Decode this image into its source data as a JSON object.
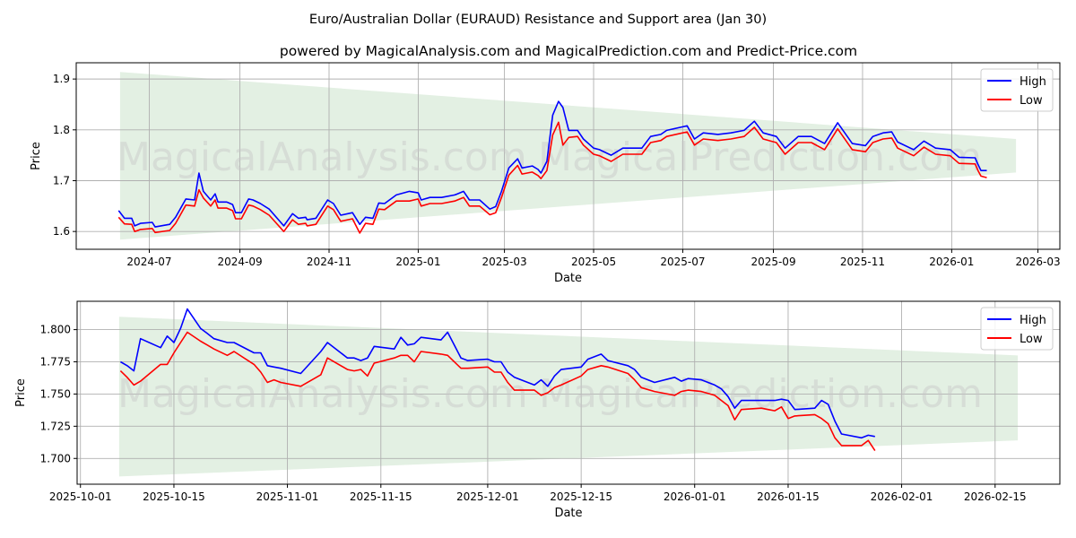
{
  "title": "Euro/Australian Dollar (EURAUD) Resistance and Support area (Jan 30)",
  "subtitle": "powered by MagicalAnalysis.com and MagicalPrediction.com and Predict-Price.com",
  "watermarks": [
    "MagicalAnalysis.com",
    "MagicalPrediction.com"
  ],
  "colors": {
    "high": "#0000ff",
    "low": "#ff0000",
    "band": "#e3f0e3"
  },
  "chart_data": [
    {
      "type": "line",
      "name": "full-range",
      "xlabel": "Date",
      "ylabel": "Price",
      "x_origin": "2024-07-01",
      "x_unit": "days since origin",
      "xlim": [
        -50,
        623
      ],
      "ylim": [
        1.565,
        1.932
      ],
      "grid": true,
      "legend": "top-right",
      "legend_labels": [
        "High",
        "Low"
      ],
      "xticks": [
        "2024-07",
        "2024-09",
        "2024-11",
        "2025-01",
        "2025-03",
        "2025-05",
        "2025-07",
        "2025-09",
        "2025-11",
        "2026-01",
        "2026-03"
      ],
      "yticks": [
        "1.6",
        "1.7",
        "1.8",
        "1.9"
      ],
      "band": {
        "x": [
          -20,
          593
        ],
        "upper": [
          1.914,
          1.782
        ],
        "lower": [
          1.584,
          1.716
        ]
      },
      "x": [
        -21,
        -17,
        -12,
        -10,
        -6,
        2,
        4,
        14,
        18,
        25,
        31,
        34,
        37,
        42,
        45,
        47,
        53,
        57,
        59,
        63,
        68,
        71,
        76,
        82,
        92,
        98,
        102,
        107,
        108,
        114,
        122,
        126,
        131,
        139,
        144,
        148,
        153,
        157,
        161,
        169,
        178,
        184,
        186,
        192,
        200,
        209,
        215,
        219,
        226,
        233,
        237,
        241,
        246,
        252,
        255,
        262,
        266,
        268,
        272,
        276,
        280,
        283,
        287,
        293,
        297,
        304,
        308,
        316,
        324,
        330,
        337,
        343,
        350,
        354,
        368,
        373,
        379,
        389,
        398,
        407,
        414,
        420,
        429,
        435,
        444,
        453,
        462,
        471,
        481,
        490,
        495,
        502,
        508,
        512,
        523,
        530,
        538,
        548,
        554,
        565,
        567,
        569,
        573
      ],
      "series": [
        {
          "name": "High",
          "values": [
            1.641,
            1.626,
            1.626,
            1.611,
            1.616,
            1.618,
            1.609,
            1.614,
            1.628,
            1.664,
            1.662,
            1.715,
            1.679,
            1.662,
            1.674,
            1.658,
            1.658,
            1.653,
            1.637,
            1.637,
            1.664,
            1.662,
            1.655,
            1.644,
            1.611,
            1.635,
            1.626,
            1.628,
            1.623,
            1.626,
            1.662,
            1.655,
            1.632,
            1.637,
            1.614,
            1.628,
            1.626,
            1.656,
            1.655,
            1.672,
            1.679,
            1.676,
            1.662,
            1.667,
            1.667,
            1.672,
            1.679,
            1.662,
            1.662,
            1.644,
            1.649,
            1.679,
            1.725,
            1.743,
            1.725,
            1.729,
            1.722,
            1.715,
            1.738,
            1.829,
            1.856,
            1.844,
            1.799,
            1.799,
            1.782,
            1.764,
            1.761,
            1.75,
            1.764,
            1.764,
            1.764,
            1.787,
            1.791,
            1.799,
            1.808,
            1.782,
            1.794,
            1.791,
            1.794,
            1.799,
            1.817,
            1.794,
            1.787,
            1.764,
            1.787,
            1.787,
            1.773,
            1.814,
            1.773,
            1.769,
            1.787,
            1.794,
            1.796,
            1.776,
            1.761,
            1.778,
            1.764,
            1.761,
            1.746,
            1.745,
            1.732,
            1.72,
            1.72
          ]
        },
        {
          "name": "Low",
          "values": [
            1.628,
            1.615,
            1.614,
            1.6,
            1.604,
            1.606,
            1.598,
            1.602,
            1.616,
            1.652,
            1.65,
            1.682,
            1.666,
            1.65,
            1.662,
            1.646,
            1.646,
            1.641,
            1.625,
            1.625,
            1.652,
            1.65,
            1.643,
            1.632,
            1.6,
            1.623,
            1.614,
            1.616,
            1.611,
            1.614,
            1.65,
            1.643,
            1.62,
            1.625,
            1.597,
            1.616,
            1.614,
            1.644,
            1.643,
            1.66,
            1.66,
            1.664,
            1.65,
            1.655,
            1.655,
            1.66,
            1.667,
            1.65,
            1.65,
            1.633,
            1.637,
            1.667,
            1.711,
            1.73,
            1.713,
            1.717,
            1.71,
            1.704,
            1.72,
            1.79,
            1.815,
            1.77,
            1.785,
            1.787,
            1.77,
            1.752,
            1.749,
            1.738,
            1.752,
            1.752,
            1.752,
            1.775,
            1.779,
            1.787,
            1.796,
            1.77,
            1.782,
            1.779,
            1.782,
            1.787,
            1.805,
            1.782,
            1.775,
            1.752,
            1.775,
            1.775,
            1.761,
            1.802,
            1.761,
            1.757,
            1.775,
            1.782,
            1.784,
            1.764,
            1.749,
            1.766,
            1.752,
            1.749,
            1.734,
            1.733,
            1.72,
            1.709,
            1.706
          ]
        }
      ]
    },
    {
      "type": "line",
      "name": "recent-range",
      "xlabel": "Date",
      "ylabel": "Price",
      "x_origin": "2025-10-01",
      "x_unit": "days since origin",
      "xlim": [
        -0.5,
        146.7
      ],
      "ylim": [
        1.68,
        1.822
      ],
      "grid": true,
      "legend": "top-right",
      "legend_labels": [
        "High",
        "Low"
      ],
      "xticks": [
        "2025-10-01",
        "2025-10-15",
        "2025-11-01",
        "2025-11-15",
        "2025-12-01",
        "2025-12-15",
        "2026-01-01",
        "2026-01-15",
        "2026-02-01",
        "2026-02-15"
      ],
      "yticks": [
        "1.700",
        "1.725",
        "1.750",
        "1.775",
        "1.800"
      ],
      "band": {
        "x": [
          5.8,
          140.4
        ],
        "upper": [
          1.81,
          1.78
        ],
        "lower": [
          1.686,
          1.714
        ]
      },
      "x": [
        6,
        7,
        8,
        9,
        12,
        13,
        14,
        15,
        16,
        18,
        19,
        20,
        22,
        23,
        26,
        27,
        28,
        29,
        30,
        33,
        36,
        37,
        40,
        41,
        42,
        43,
        44,
        47,
        48,
        49,
        50,
        51,
        54,
        55,
        57,
        58,
        61,
        62,
        63,
        64,
        65,
        68,
        69,
        70,
        71,
        72,
        75,
        76,
        78,
        79,
        82,
        83,
        84,
        86,
        89,
        90,
        91,
        93,
        95,
        96,
        97,
        98,
        99,
        102,
        103,
        104,
        105,
        106,
        107,
        110,
        111,
        112,
        113,
        114,
        117,
        118,
        119
      ],
      "series": [
        {
          "name": "High",
          "values": [
            1.775,
            1.772,
            1.768,
            1.793,
            1.786,
            1.795,
            1.79,
            1.801,
            1.816,
            1.801,
            1.797,
            1.793,
            1.79,
            1.79,
            1.782,
            1.782,
            1.772,
            1.771,
            1.77,
            1.766,
            1.783,
            1.79,
            1.778,
            1.778,
            1.776,
            1.778,
            1.787,
            1.785,
            1.794,
            1.788,
            1.789,
            1.794,
            1.792,
            1.798,
            1.778,
            1.776,
            1.777,
            1.775,
            1.775,
            1.767,
            1.763,
            1.757,
            1.761,
            1.756,
            1.764,
            1.769,
            1.771,
            1.777,
            1.781,
            1.776,
            1.772,
            1.769,
            1.763,
            1.759,
            1.763,
            1.76,
            1.762,
            1.761,
            1.757,
            1.754,
            1.748,
            1.739,
            1.745,
            1.745,
            1.745,
            1.745,
            1.746,
            1.745,
            1.738,
            1.739,
            1.745,
            1.742,
            1.729,
            1.719,
            1.716,
            1.718,
            1.717
          ]
        },
        {
          "name": "Low",
          "values": [
            1.768,
            1.763,
            1.757,
            1.76,
            1.773,
            1.773,
            1.782,
            1.79,
            1.798,
            1.791,
            1.788,
            1.785,
            1.78,
            1.783,
            1.773,
            1.767,
            1.759,
            1.761,
            1.759,
            1.756,
            1.765,
            1.778,
            1.769,
            1.768,
            1.769,
            1.764,
            1.774,
            1.778,
            1.78,
            1.78,
            1.775,
            1.783,
            1.781,
            1.78,
            1.77,
            1.77,
            1.771,
            1.767,
            1.767,
            1.759,
            1.753,
            1.753,
            1.749,
            1.751,
            1.755,
            1.757,
            1.764,
            1.769,
            1.772,
            1.771,
            1.766,
            1.761,
            1.755,
            1.752,
            1.749,
            1.752,
            1.753,
            1.752,
            1.749,
            1.745,
            1.741,
            1.73,
            1.738,
            1.739,
            1.738,
            1.737,
            1.74,
            1.731,
            1.733,
            1.734,
            1.731,
            1.727,
            1.716,
            1.71,
            1.71,
            1.714,
            1.706
          ]
        }
      ]
    }
  ]
}
